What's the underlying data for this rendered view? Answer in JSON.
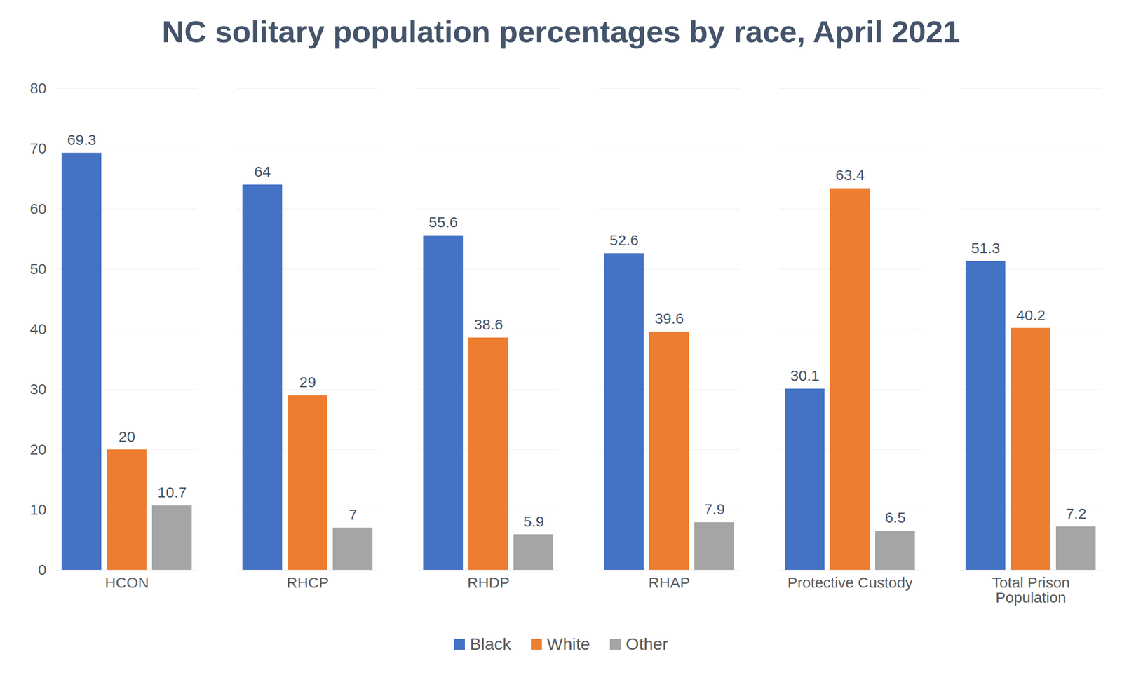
{
  "chart_data": {
    "type": "bar",
    "title": "NC solitary population percentages by race, April 2021",
    "categories": [
      "HCON",
      "RHCP",
      "RHDP",
      "RHAP",
      "Protective Custody",
      "Total Prison Population"
    ],
    "series": [
      {
        "name": "Black",
        "color": "#4472c4",
        "values": [
          69.3,
          64,
          55.6,
          52.6,
          30.1,
          51.3
        ]
      },
      {
        "name": "White",
        "color": "#ed7d31",
        "values": [
          20,
          29,
          38.6,
          39.6,
          63.4,
          40.2
        ]
      },
      {
        "name": "Other",
        "color": "#a5a5a5",
        "values": [
          10.7,
          7,
          5.9,
          7.9,
          6.5,
          7.2
        ]
      }
    ],
    "ylim": [
      0,
      80
    ],
    "yticks": [
      0,
      10,
      20,
      30,
      40,
      50,
      60,
      70,
      80
    ],
    "grid": true,
    "data_labels": true,
    "legend": "bottom"
  }
}
